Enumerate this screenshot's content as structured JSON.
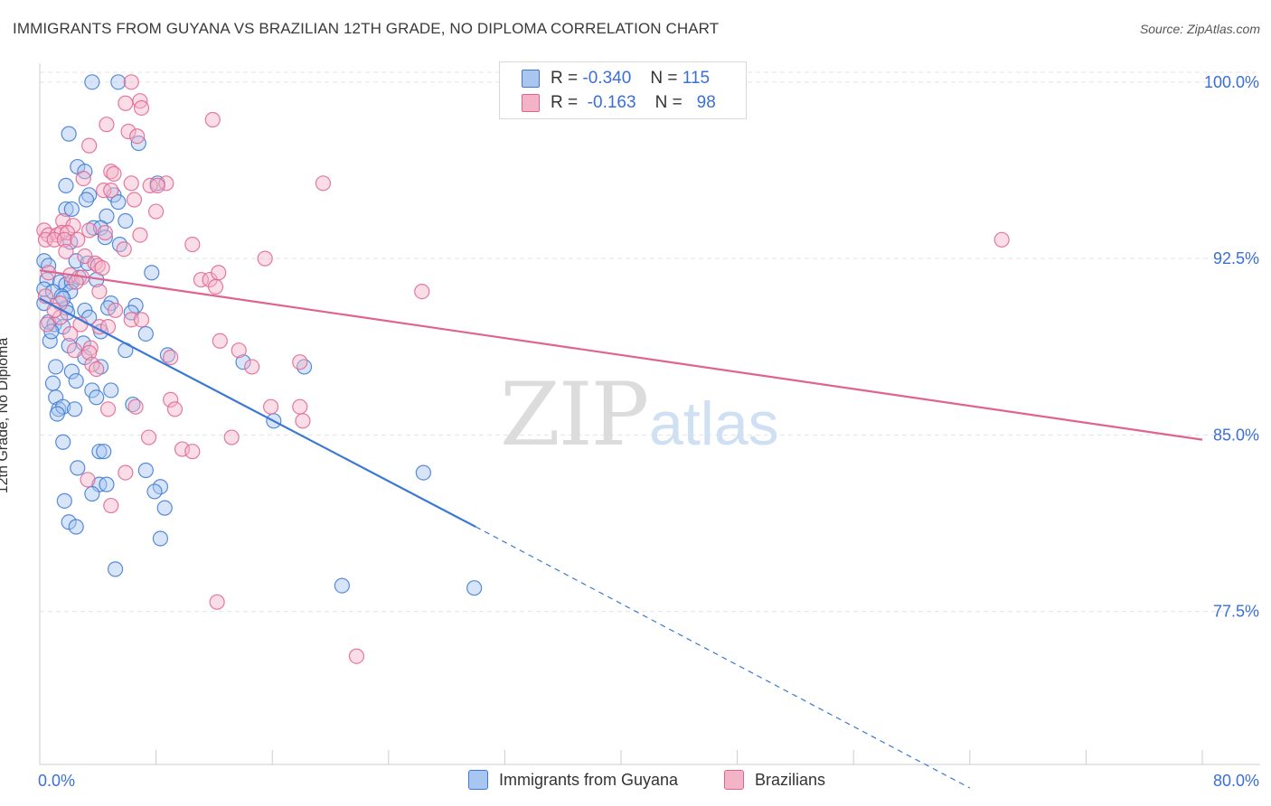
{
  "title": "IMMIGRANTS FROM GUYANA VS BRAZILIAN 12TH GRADE, NO DIPLOMA CORRELATION CHART",
  "source": "Source: ZipAtlas.com",
  "legend_stats": [
    {
      "r_label": "R =",
      "r_value": "-0.340",
      "n_label": "N =",
      "n_value": "115"
    },
    {
      "r_label": "R =",
      "r_value": "-0.163",
      "n_label": "N =",
      "n_value": "98"
    }
  ],
  "colors": {
    "blue": "#3a78d4",
    "blue_fill": "#a9c6f0",
    "pink": "#e0638f",
    "pink_fill": "#f4b4c8",
    "tick_label": "#3a6fd8",
    "grid": "#e3e3e3"
  },
  "chart_data": {
    "type": "scatter",
    "title": "IMMIGRANTS FROM GUYANA VS BRAZILIAN 12TH GRADE, NO DIPLOMA CORRELATION CHART",
    "xlabel": "",
    "ylabel": "12th Grade, No Diploma",
    "xlim": [
      0,
      80
    ],
    "ylim": [
      71.0,
      100.8
    ],
    "x_tick_labels": [
      "0.0%",
      "80.0%"
    ],
    "y_ticks": [
      77.5,
      85.0,
      92.5,
      100.0
    ],
    "y_tick_labels": [
      "77.5%",
      "85.0%",
      "92.5%",
      "100.0%"
    ],
    "watermark": {
      "zip": "ZIP",
      "atlas": "atlas"
    },
    "series": [
      {
        "name": "Immigrants from Guyana",
        "color": "#3a78d4",
        "trend": {
          "x0": 0,
          "y0": 90.8,
          "x1": 30.0,
          "y1": 81.1,
          "dash_to_x": 64.0,
          "dash_to_y": 70.0
        },
        "points": [
          [
            3.6,
            100.0
          ],
          [
            5.4,
            100.0
          ],
          [
            2.0,
            97.8
          ],
          [
            6.8,
            97.4
          ],
          [
            2.6,
            96.4
          ],
          [
            3.1,
            96.2
          ],
          [
            1.8,
            95.6
          ],
          [
            8.1,
            95.7
          ],
          [
            3.4,
            95.2
          ],
          [
            5.1,
            95.2
          ],
          [
            3.2,
            95.0
          ],
          [
            5.4,
            94.9
          ],
          [
            1.8,
            94.6
          ],
          [
            2.2,
            94.6
          ],
          [
            4.6,
            94.3
          ],
          [
            5.9,
            94.1
          ],
          [
            3.7,
            93.8
          ],
          [
            4.2,
            93.8
          ],
          [
            4.5,
            93.4
          ],
          [
            2.1,
            93.2
          ],
          [
            5.5,
            93.1
          ],
          [
            0.3,
            92.4
          ],
          [
            0.6,
            92.2
          ],
          [
            2.5,
            92.4
          ],
          [
            3.3,
            92.3
          ],
          [
            7.7,
            91.9
          ],
          [
            0.5,
            91.6
          ],
          [
            1.4,
            91.5
          ],
          [
            1.8,
            91.4
          ],
          [
            2.2,
            91.5
          ],
          [
            3.9,
            91.6
          ],
          [
            0.3,
            91.2
          ],
          [
            0.9,
            91.1
          ],
          [
            2.1,
            91.1
          ],
          [
            1.5,
            90.9
          ],
          [
            4.9,
            90.6
          ],
          [
            4.7,
            90.4
          ],
          [
            6.6,
            90.5
          ],
          [
            0.3,
            90.6
          ],
          [
            1.8,
            90.4
          ],
          [
            1.9,
            90.2
          ],
          [
            3.1,
            90.3
          ],
          [
            3.4,
            90.0
          ],
          [
            6.3,
            90.2
          ],
          [
            0.6,
            89.8
          ],
          [
            1.0,
            89.7
          ],
          [
            1.6,
            89.6
          ],
          [
            4.2,
            89.4
          ],
          [
            7.3,
            89.3
          ],
          [
            0.7,
            89.0
          ],
          [
            2.0,
            88.8
          ],
          [
            3.0,
            88.9
          ],
          [
            5.9,
            88.6
          ],
          [
            8.8,
            88.4
          ],
          [
            3.1,
            88.3
          ],
          [
            1.1,
            87.9
          ],
          [
            2.2,
            87.7
          ],
          [
            4.2,
            87.9
          ],
          [
            14.0,
            88.1
          ],
          [
            18.2,
            87.9
          ],
          [
            0.9,
            87.2
          ],
          [
            2.5,
            87.3
          ],
          [
            3.6,
            86.9
          ],
          [
            4.9,
            86.9
          ],
          [
            1.1,
            86.6
          ],
          [
            3.9,
            86.6
          ],
          [
            1.3,
            86.1
          ],
          [
            1.6,
            86.2
          ],
          [
            2.4,
            86.1
          ],
          [
            6.4,
            86.3
          ],
          [
            1.2,
            85.9
          ],
          [
            16.1,
            85.6
          ],
          [
            1.6,
            84.7
          ],
          [
            4.1,
            84.3
          ],
          [
            4.4,
            84.3
          ],
          [
            2.6,
            83.6
          ],
          [
            7.3,
            83.5
          ],
          [
            4.1,
            82.9
          ],
          [
            4.6,
            82.9
          ],
          [
            8.3,
            82.8
          ],
          [
            7.9,
            82.6
          ],
          [
            26.4,
            83.4
          ],
          [
            3.6,
            82.5
          ],
          [
            1.7,
            82.2
          ],
          [
            8.6,
            81.9
          ],
          [
            2.0,
            81.3
          ],
          [
            2.5,
            81.1
          ],
          [
            8.3,
            80.6
          ],
          [
            5.2,
            79.3
          ],
          [
            20.8,
            78.6
          ],
          [
            29.9,
            78.5
          ],
          [
            0.8,
            89.4
          ],
          [
            1.6,
            90.8
          ],
          [
            2.7,
            91.7
          ]
        ]
      },
      {
        "name": "Brazilians",
        "color": "#e0638f",
        "trend": {
          "x0": 0,
          "y0": 92.0,
          "x1": 80,
          "y1": 84.8
        },
        "points": [
          [
            6.3,
            100.0
          ],
          [
            6.9,
            99.2
          ],
          [
            5.9,
            99.1
          ],
          [
            7.0,
            98.9
          ],
          [
            11.9,
            98.4
          ],
          [
            4.6,
            98.2
          ],
          [
            6.1,
            97.9
          ],
          [
            6.7,
            97.7
          ],
          [
            3.4,
            97.3
          ],
          [
            4.9,
            96.2
          ],
          [
            5.1,
            96.1
          ],
          [
            3.0,
            95.9
          ],
          [
            6.3,
            95.7
          ],
          [
            8.7,
            95.7
          ],
          [
            4.4,
            95.4
          ],
          [
            7.6,
            95.6
          ],
          [
            8.1,
            95.6
          ],
          [
            19.5,
            95.7
          ],
          [
            4.9,
            95.4
          ],
          [
            6.5,
            95.0
          ],
          [
            8.0,
            94.5
          ],
          [
            1.6,
            94.1
          ],
          [
            2.3,
            93.9
          ],
          [
            0.3,
            93.7
          ],
          [
            0.6,
            93.5
          ],
          [
            1.2,
            93.5
          ],
          [
            1.5,
            93.6
          ],
          [
            1.9,
            93.6
          ],
          [
            3.4,
            93.7
          ],
          [
            4.5,
            93.6
          ],
          [
            6.9,
            93.5
          ],
          [
            0.4,
            93.3
          ],
          [
            1.0,
            93.3
          ],
          [
            1.7,
            93.3
          ],
          [
            2.6,
            93.3
          ],
          [
            5.8,
            92.9
          ],
          [
            10.5,
            93.1
          ],
          [
            3.1,
            92.6
          ],
          [
            15.5,
            92.5
          ],
          [
            66.2,
            93.3
          ],
          [
            3.8,
            92.3
          ],
          [
            4.0,
            92.2
          ],
          [
            4.3,
            92.1
          ],
          [
            0.6,
            91.9
          ],
          [
            2.1,
            91.8
          ],
          [
            2.9,
            91.7
          ],
          [
            11.1,
            91.6
          ],
          [
            11.7,
            91.6
          ],
          [
            12.3,
            91.9
          ],
          [
            2.5,
            91.5
          ],
          [
            4.1,
            91.1
          ],
          [
            12.1,
            91.3
          ],
          [
            26.3,
            91.1
          ],
          [
            0.4,
            90.9
          ],
          [
            1.4,
            90.6
          ],
          [
            2.8,
            89.7
          ],
          [
            5.2,
            90.3
          ],
          [
            1.4,
            90.0
          ],
          [
            6.3,
            89.9
          ],
          [
            7.0,
            89.9
          ],
          [
            0.5,
            89.7
          ],
          [
            2.1,
            89.3
          ],
          [
            4.1,
            89.6
          ],
          [
            4.7,
            89.6
          ],
          [
            12.4,
            89.0
          ],
          [
            3.5,
            88.7
          ],
          [
            3.4,
            88.5
          ],
          [
            13.7,
            88.6
          ],
          [
            9.0,
            88.3
          ],
          [
            3.6,
            88.0
          ],
          [
            17.9,
            88.1
          ],
          [
            14.6,
            87.9
          ],
          [
            3.9,
            87.8
          ],
          [
            9.0,
            86.5
          ],
          [
            15.9,
            86.2
          ],
          [
            6.6,
            86.2
          ],
          [
            4.7,
            86.1
          ],
          [
            9.3,
            86.1
          ],
          [
            17.9,
            86.2
          ],
          [
            18.1,
            85.6
          ],
          [
            7.5,
            84.9
          ],
          [
            13.2,
            84.9
          ],
          [
            9.8,
            84.4
          ],
          [
            10.5,
            84.3
          ],
          [
            5.9,
            83.4
          ],
          [
            3.3,
            83.1
          ],
          [
            4.9,
            82.0
          ],
          [
            12.2,
            77.9
          ],
          [
            21.8,
            75.6
          ],
          [
            1.0,
            90.3
          ],
          [
            2.4,
            88.6
          ],
          [
            1.8,
            92.8
          ]
        ]
      }
    ]
  },
  "bottom_legend": [
    "Immigrants from Guyana",
    "Brazilians"
  ]
}
